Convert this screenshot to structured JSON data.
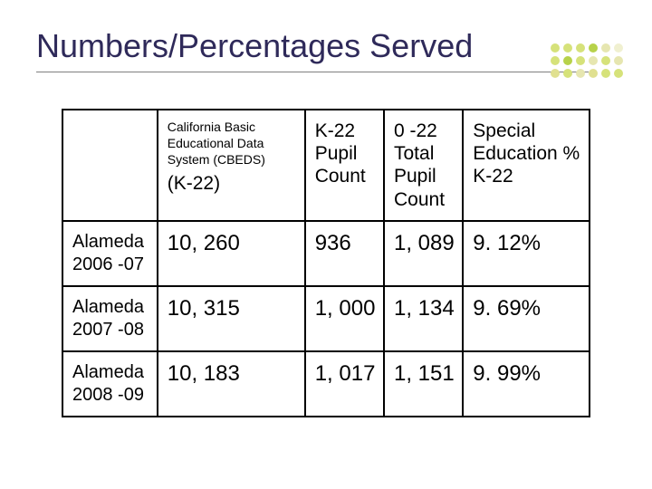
{
  "title": "Numbers/Percentages Served",
  "title_color": "#2f2a5a",
  "underline_color": "#7f7f7f",
  "dots": {
    "colors": [
      "#d6e27a",
      "#d6e27a",
      "#d6e27a",
      "#b7d24a",
      "#e6e6b0",
      "#f0f0d0",
      "#d6e27a",
      "#b7d24a",
      "#d6e27a",
      "#e6e6b0",
      "#d6e27a",
      "#e6e6b0",
      "#e0e090",
      "#d6e27a",
      "#e6e6b0",
      "#e0e090",
      "#d6e27a",
      "#d6e27a"
    ]
  },
  "table": {
    "border_color": "#000000",
    "cell_font_color": "#000000",
    "columns": {
      "c1": {
        "header_blank": ""
      },
      "c2": {
        "line1": "California Basic Educational Data System (CBEDS)",
        "line2": "(K-22)"
      },
      "c3": {
        "header": "K-22 Pupil Count"
      },
      "c4": {
        "header": "0 -22 Total Pupil Count"
      },
      "c5": {
        "header": "Special Education % K-22"
      }
    },
    "rows": [
      {
        "label_l1": "Alameda",
        "label_l2": "2006 -07",
        "cbeds": "10, 260",
        "k22": "936",
        "tot": "1, 089",
        "pct": "9. 12%"
      },
      {
        "label_l1": "Alameda",
        "label_l2": "2007 -08",
        "cbeds": "10, 315",
        "k22": "1, 000",
        "tot": "1, 134",
        "pct": "9. 69%"
      },
      {
        "label_l1": "Alameda",
        "label_l2": "2008 -09",
        "cbeds": "10, 183",
        "k22": "1, 017",
        "tot": "1, 151",
        "pct": "9. 99%"
      }
    ]
  }
}
